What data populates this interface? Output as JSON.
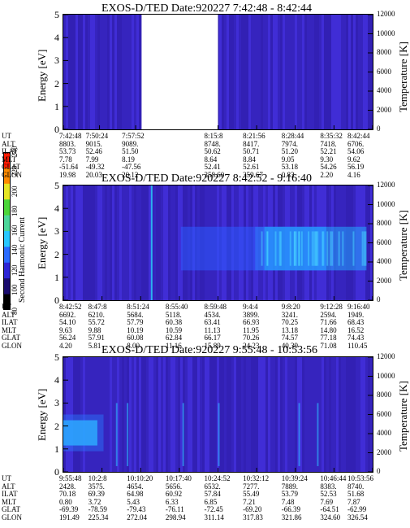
{
  "chart_data": [
    {
      "type": "heatmap",
      "title": "EXOS-D/TED   Date:920227  7:42:48 - 8:42:44",
      "ylabel": "Energy [eV]",
      "y2label": "Temperature [K]",
      "ylim": [
        0,
        5
      ],
      "y2lim": [
        0,
        12000
      ],
      "yticks": [
        "0",
        "1",
        "2",
        "3",
        "4",
        "5"
      ],
      "y2ticks": [
        "0",
        "2000",
        "4000",
        "6000",
        "8000",
        "10000",
        "12000"
      ],
      "data_gap": [
        0.253,
        0.5
      ],
      "table": {
        "labels": [
          "UT",
          "ALT",
          "ILAT",
          "MLT",
          "GLAT",
          "GLON"
        ],
        "columns": [
          {
            "pos": 0.0,
            "values": [
              "7:42:48",
              "8803.",
              "53.73",
              "7.78",
              "-51.64",
              "19.98"
            ]
          },
          {
            "pos": 0.117,
            "values": [
              "7:50:24",
              "9015.",
              "52.46",
              "7.99",
              "-49.32",
              "20.03"
            ]
          },
          {
            "pos": 0.234,
            "values": [
              "7:57:52",
              "9089.",
              "51.50",
              "8.19",
              "-47.56",
              "20.12"
            ]
          },
          {
            "pos": 0.5,
            "values": [
              "8:15:8",
              "8748.",
              "50.62",
              "8.64",
              "52.41",
              "358.60"
            ]
          },
          {
            "pos": 0.625,
            "values": [
              "8:21:56",
              "8417.",
              "50.71",
              "8.84",
              "52.61",
              "359.67"
            ]
          },
          {
            "pos": 0.75,
            "values": [
              "8:28:44",
              "7974.",
              "51.20",
              "9.05",
              "53.18",
              "0.83"
            ]
          },
          {
            "pos": 0.875,
            "values": [
              "8:35:32",
              "7418.",
              "52.21",
              "9.30",
              "54.26",
              "2.20"
            ]
          },
          {
            "pos": 1.0,
            "values": [
              "8:42:44",
              "6706.",
              "54.06",
              "9.62",
              "56.19",
              "4.16"
            ]
          }
        ]
      }
    },
    {
      "type": "heatmap",
      "title": "EXOS-D/TED   Date:920227  8:42:52 - 9:16:40",
      "ylabel": "Energy [eV]",
      "y2label": "Temperature [K]",
      "ylim": [
        0,
        5
      ],
      "y2lim": [
        0,
        12000
      ],
      "yticks": [
        "0",
        "1",
        "2",
        "3",
        "4",
        "5"
      ],
      "y2ticks": [
        "0",
        "2000",
        "4000",
        "6000",
        "8000",
        "10000",
        "12000"
      ],
      "table": {
        "labels": [
          "UT",
          "ALT",
          "ILAT",
          "MLT",
          "GLAT",
          "GLON"
        ],
        "columns": [
          {
            "pos": 0.0,
            "values": [
              "8:42:52",
              "6692.",
              "54.10",
              "9.63",
              "56.24",
              "4.20"
            ]
          },
          {
            "pos": 0.125,
            "values": [
              "8:47:8",
              "6210.",
              "55.72",
              "9.88",
              "57.91",
              "5.81"
            ]
          },
          {
            "pos": 0.25,
            "values": [
              "8:51:24",
              "5684.",
              "57.79",
              "10.19",
              "60.08",
              "8.00"
            ]
          },
          {
            "pos": 0.375,
            "values": [
              "8:55:40",
              "5118.",
              "60.38",
              "10.59",
              "62.84",
              "11.16"
            ]
          },
          {
            "pos": 0.5,
            "values": [
              "8:59:48",
              "4534.",
              "63.41",
              "11.13",
              "66.17",
              "15.89"
            ]
          },
          {
            "pos": 0.625,
            "values": [
              "9:4:4",
              "3899.",
              "66.93",
              "11.95",
              "70.26",
              "24.23"
            ]
          },
          {
            "pos": 0.75,
            "values": [
              "9:8:20",
              "3241.",
              "70.25",
              "13.18",
              "74.57",
              "40.39"
            ]
          },
          {
            "pos": 0.875,
            "values": [
              "9:12:28",
              "2594.",
              "71.66",
              "14.80",
              "77.18",
              "71.08"
            ]
          },
          {
            "pos": 1.0,
            "values": [
              "9:16:40",
              "1949.",
              "68.43",
              "16.52",
              "74.43",
              "110.45"
            ]
          }
        ]
      }
    },
    {
      "type": "heatmap",
      "title": "EXOS-D/TED   Date:920227  9:55:48 - 10:53:56",
      "ylabel": "Energy [eV]",
      "y2label": "Temperature [K]",
      "ylim": [
        0,
        5
      ],
      "y2lim": [
        0,
        12000
      ],
      "yticks": [
        "0",
        "1",
        "2",
        "3",
        "4",
        "5"
      ],
      "y2ticks": [
        "0",
        "2000",
        "4000",
        "6000",
        "8000",
        "10000",
        "12000"
      ],
      "table": {
        "labels": [
          "UT",
          "ALT",
          "ILAT",
          "MLT",
          "GLAT",
          "GLON"
        ],
        "columns": [
          {
            "pos": 0.0,
            "values": [
              "9:55:48",
              "2428.",
              "70.18",
              "0.80",
              "-69.39",
              "191.49"
            ]
          },
          {
            "pos": 0.125,
            "values": [
              "10:2:8",
              "3575.",
              "69.39",
              "3.72",
              "-78.59",
              "225.34"
            ]
          },
          {
            "pos": 0.25,
            "values": [
              "10:10:20",
              "4654.",
              "64.98",
              "5.43",
              "-79.43",
              "272.04"
            ]
          },
          {
            "pos": 0.375,
            "values": [
              "10:17:40",
              "5656.",
              "60.92",
              "6.33",
              "-76.11",
              "298.94"
            ]
          },
          {
            "pos": 0.5,
            "values": [
              "10:24:52",
              "6532.",
              "57.84",
              "6.85",
              "-72.45",
              "311.14"
            ]
          },
          {
            "pos": 0.625,
            "values": [
              "10:32:12",
              "7277.",
              "55.49",
              "7.21",
              "-69.20",
              "317.83"
            ]
          },
          {
            "pos": 0.75,
            "values": [
              "10:39:24",
              "7889.",
              "53.79",
              "7.48",
              "-66.39",
              "321.86"
            ]
          },
          {
            "pos": 0.875,
            "values": [
              "10:46:44",
              "8383.",
              "52.53",
              "7.69",
              "-64.51",
              "324.60"
            ]
          },
          {
            "pos": 1.0,
            "values": [
              "10:53:56",
              "8740.",
              "51.68",
              "7.87",
              "-62.99",
              "326.54"
            ]
          }
        ]
      }
    }
  ],
  "colorbar": {
    "title": "Second Harmonic Current",
    "ticks": [
      "80",
      "100",
      "120",
      "140",
      "160",
      "180",
      "200",
      "220",
      "240"
    ],
    "colors": [
      "#000000",
      "#1a0c6e",
      "#2d25d6",
      "#2b6bff",
      "#29c8ff",
      "#4cd69a",
      "#4cd63a",
      "#e6e626",
      "#ff8a00",
      "#ff1a00"
    ]
  }
}
